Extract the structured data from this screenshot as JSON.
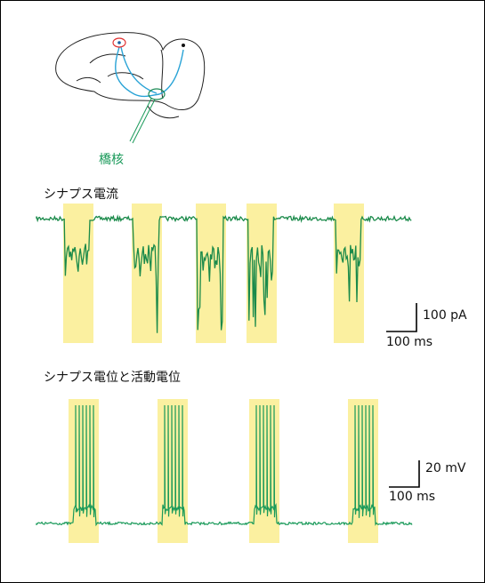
{
  "brain_label": "橋核",
  "panel_1": {
    "title": "シナプス電流",
    "scale_y": "100 pA",
    "scale_x": "100 ms"
  },
  "panel_2": {
    "title": "シナプス電位と活動電位",
    "scale_y": "20 mV",
    "scale_x": "100 ms"
  }
}
